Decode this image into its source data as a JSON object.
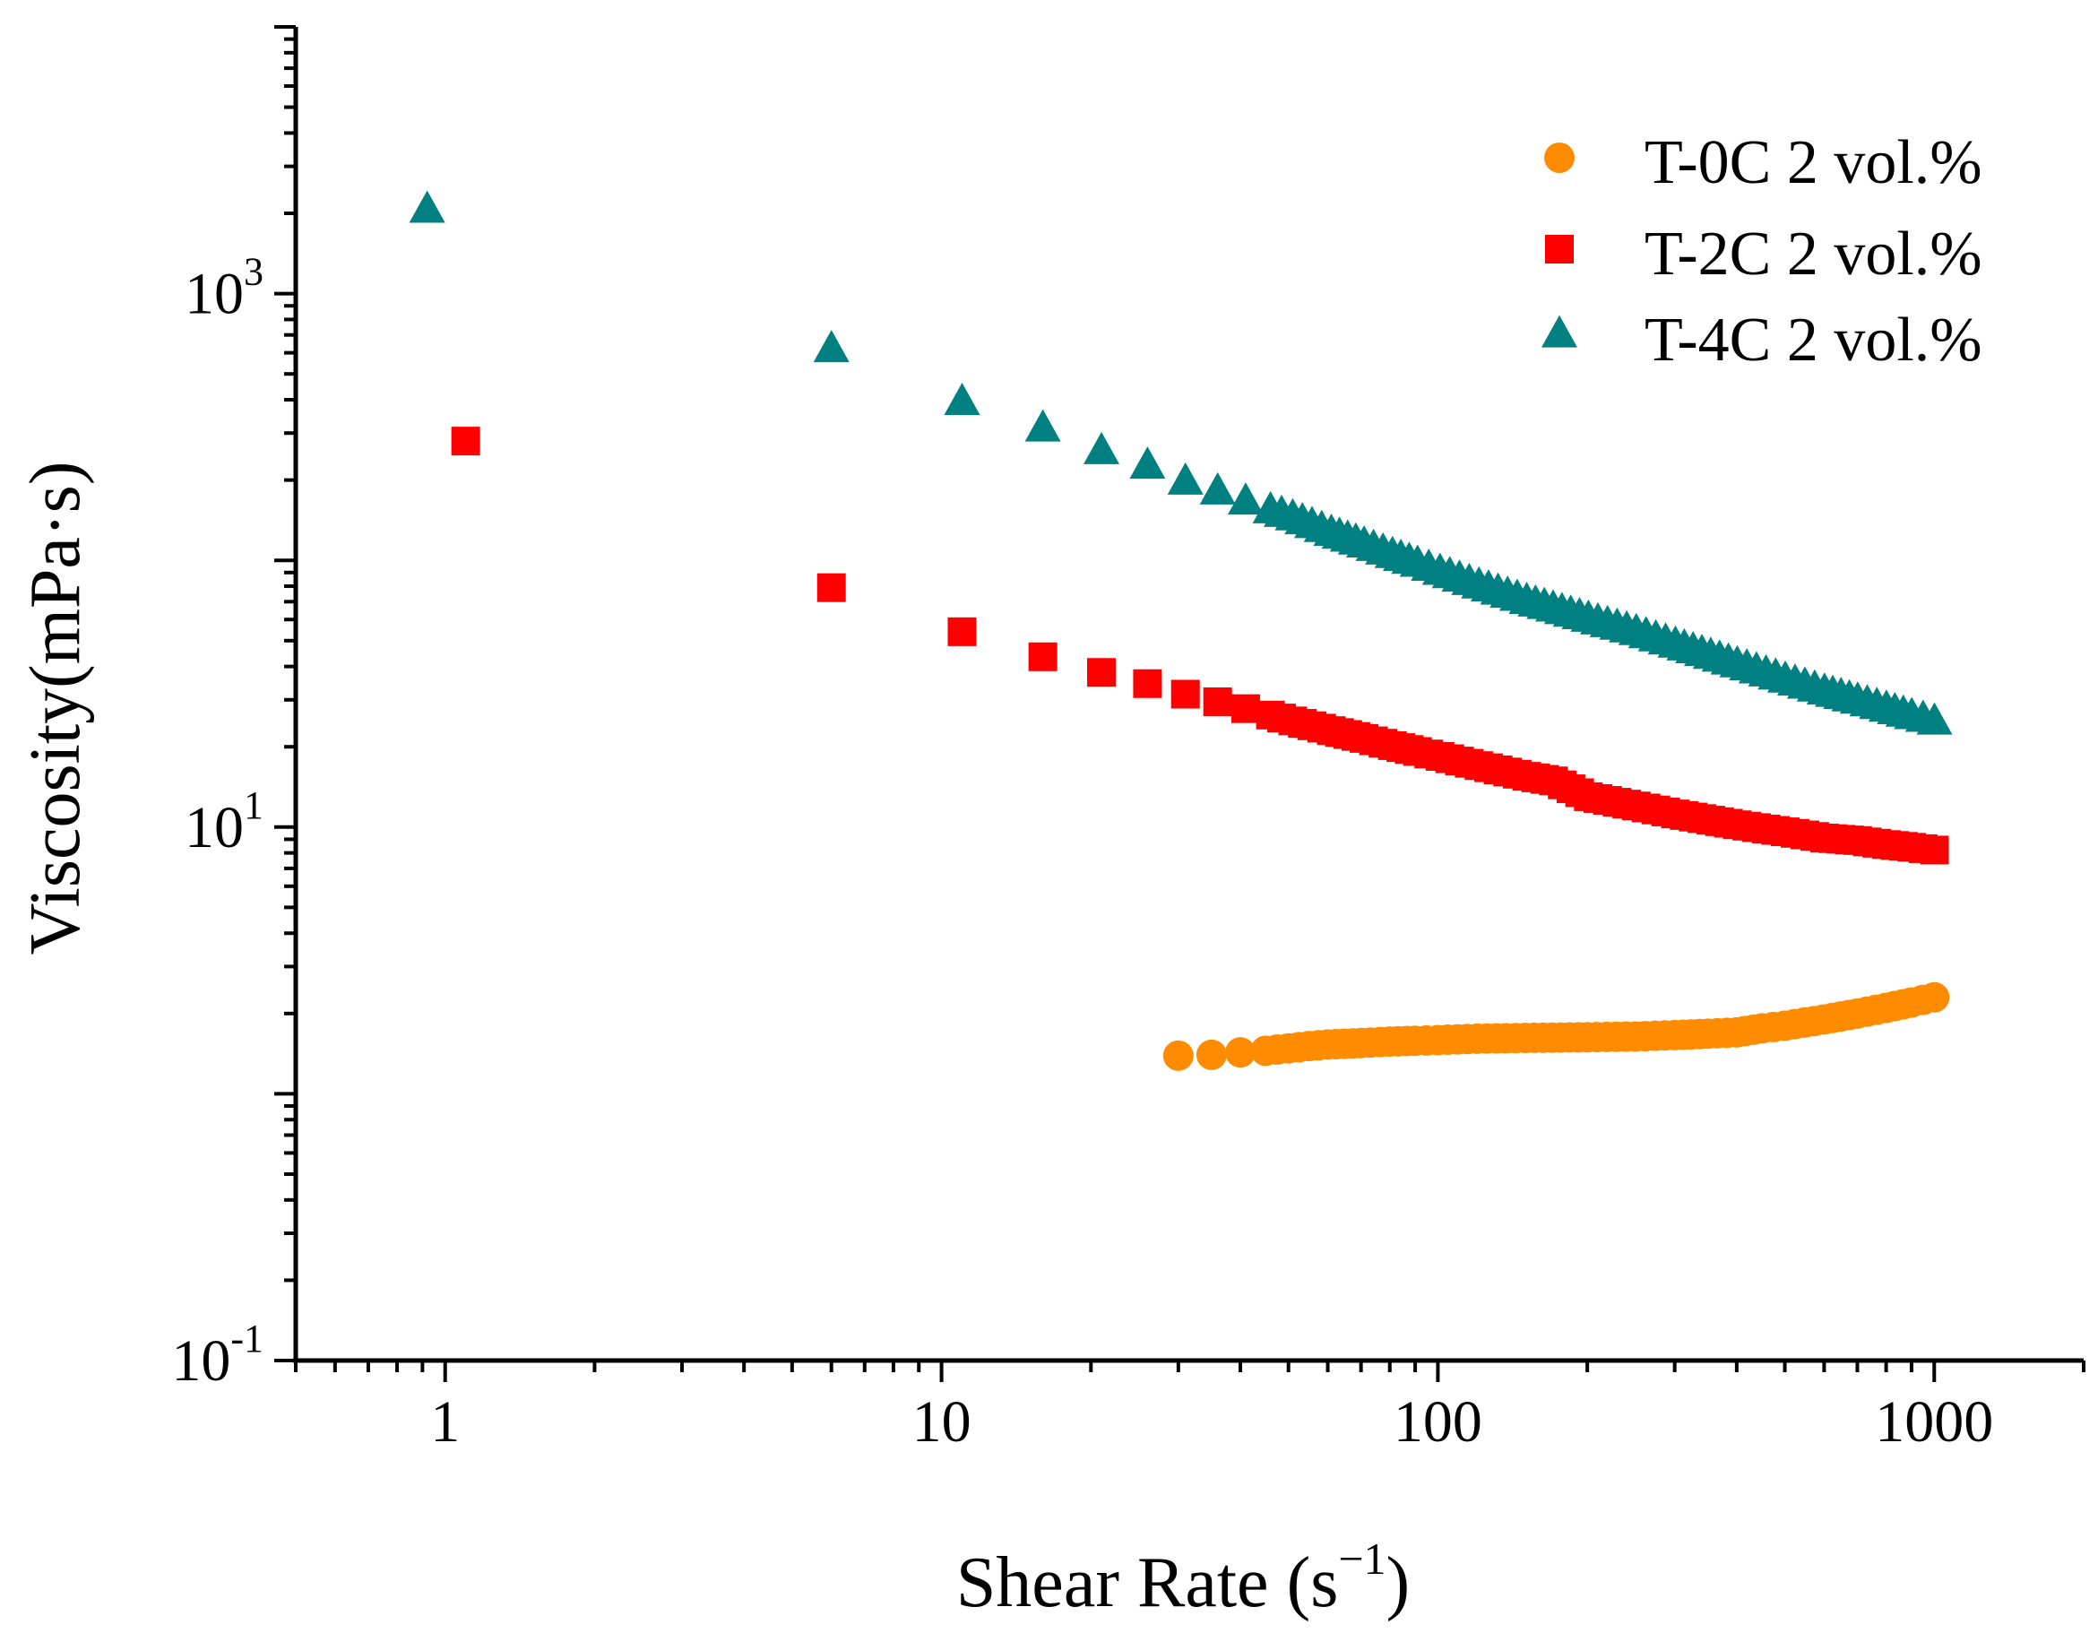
{
  "chart_data": {
    "type": "scatter",
    "title": "",
    "xlabel": "Shear Rate (s",
    "xlabel_sup": "−1",
    "xlabel_close": ")",
    "ylabel": "Viscosity(mPa·s)",
    "x_scale": "log",
    "y_scale": "log",
    "xlim": [
      0.5,
      2000
    ],
    "ylim": [
      0.1,
      10000
    ],
    "grid": false,
    "legend_position": "top-right",
    "x_ticks": [
      "1",
      "10",
      "100",
      "1000"
    ],
    "y_ticks": [
      {
        "base": "10",
        "exp": "-1"
      },
      {
        "base": "10",
        "exp": "1"
      },
      {
        "base": "10",
        "exp": "3"
      }
    ],
    "series": [
      {
        "name": "T-0C  2 vol.%",
        "marker": "circle",
        "color": "#ff8c00",
        "x": [
          30,
          35,
          40,
          45,
          50,
          55,
          60,
          70,
          80,
          90,
          100,
          120,
          150,
          200,
          250,
          300,
          350,
          400,
          450,
          500,
          600,
          700,
          800,
          900,
          1000
        ],
        "y": [
          1.39,
          1.4,
          1.43,
          1.45,
          1.48,
          1.51,
          1.53,
          1.55,
          1.57,
          1.58,
          1.59,
          1.61,
          1.62,
          1.63,
          1.64,
          1.66,
          1.68,
          1.7,
          1.76,
          1.8,
          1.9,
          2.0,
          2.1,
          2.2,
          2.3
        ]
      },
      {
        "name": "T-2C 2 vol.%",
        "marker": "square",
        "color": "#ff0000",
        "x": [
          1.1,
          6,
          11,
          16,
          21,
          26,
          31,
          36,
          41,
          46,
          51,
          61,
          71,
          81,
          91,
          101,
          121,
          151,
          171,
          201,
          251,
          301,
          401,
          501,
          601,
          701,
          801,
          901,
          1001
        ],
        "y": [
          280,
          79,
          54,
          43.5,
          38,
          34.5,
          31.5,
          29.5,
          27.8,
          26.3,
          25,
          23,
          21.5,
          20.2,
          19.2,
          18.4,
          17,
          15.5,
          14.9,
          13,
          12,
          11.2,
          10.2,
          9.6,
          9.1,
          8.9,
          8.6,
          8.4,
          8.2
        ]
      },
      {
        "name": "T-4C 2 vol.%",
        "marker": "triangle",
        "color": "#008080",
        "x": [
          0.92,
          6,
          11,
          16,
          21,
          26,
          31,
          36,
          41,
          46,
          51,
          61,
          71,
          81,
          91,
          101,
          121,
          151,
          201,
          251,
          301,
          401,
          501,
          601,
          701,
          801,
          901,
          1001
        ],
        "y": [
          2050,
          615,
          390,
          310,
          255,
          225,
          196,
          180,
          165,
          153,
          144,
          126,
          114,
          104,
          96.5,
          90,
          80,
          70,
          60,
          53.5,
          48,
          40.5,
          35.5,
          32,
          29.6,
          27.6,
          25.9,
          24.7
        ]
      }
    ]
  }
}
